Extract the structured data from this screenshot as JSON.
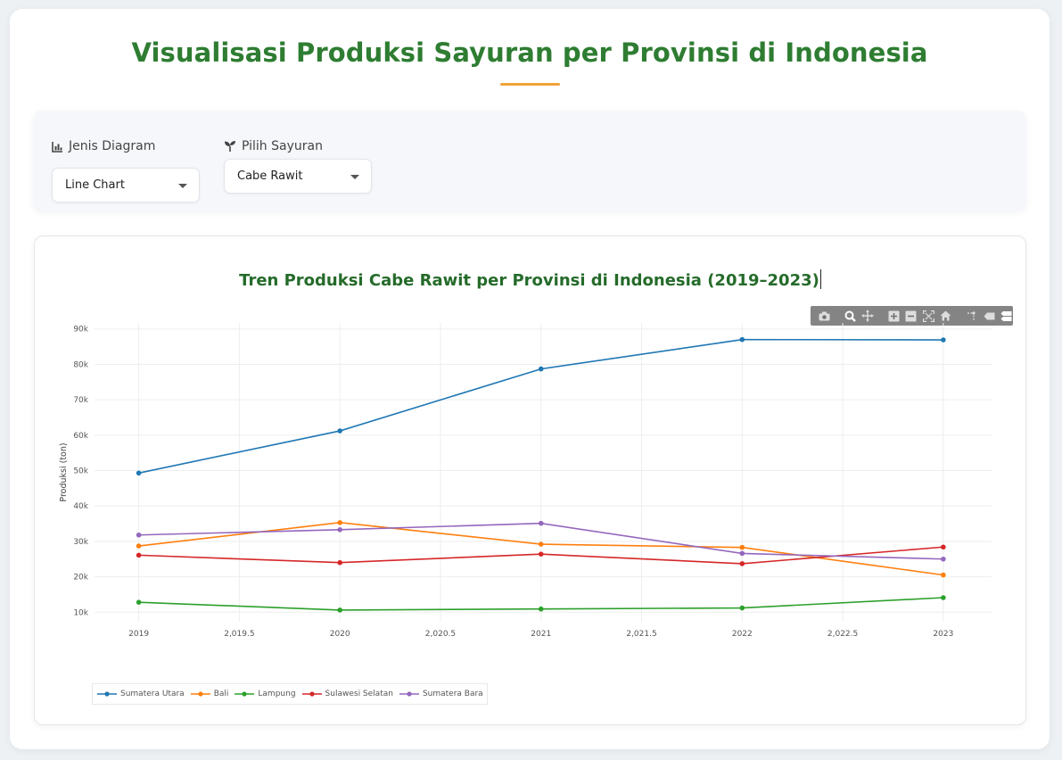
{
  "page": {
    "title": "Visualisasi Produksi Sayuran per Provinsi di Indonesia"
  },
  "controls": {
    "chart_type": {
      "label": "Jenis Diagram",
      "icon": "chart-bar-icon",
      "value": "Line Chart"
    },
    "vegetable": {
      "label": "Pilih Sayuran",
      "icon": "seedling-icon",
      "value": "Cabe Rawit"
    }
  },
  "colors": {
    "accent_green": "#2e7d32",
    "underline_orange": "#f2a33a"
  },
  "chart_data": {
    "type": "line",
    "title": "Tren Produksi Cabe Rawit per Provinsi di Indonesia (2019–2023)",
    "xlabel": "",
    "ylabel": "Produksi (ton)",
    "x": [
      2019,
      2020,
      2021,
      2022,
      2023
    ],
    "x_ticks": [
      "2019",
      "2,019.5",
      "2020",
      "2,020.5",
      "2021",
      "2,021.5",
      "2022",
      "2,022.5",
      "2023"
    ],
    "y_ticks": [
      "10k",
      "20k",
      "30k",
      "40k",
      "50k",
      "60k",
      "70k",
      "80k",
      "90k"
    ],
    "xlim": [
      2018.78,
      2023.24
    ],
    "ylim": [
      7300,
      91700
    ],
    "grid": true,
    "legend_position": "bottom-left",
    "series": [
      {
        "name": "Sumatera Utara",
        "color": "#1f77b4",
        "values": [
          49300,
          61200,
          78700,
          87000,
          86900
        ]
      },
      {
        "name": "Bali",
        "color": "#ff7f0e",
        "values": [
          28700,
          35300,
          29200,
          28300,
          20500
        ]
      },
      {
        "name": "Lampung",
        "color": "#2ca02c",
        "values": [
          12800,
          10600,
          10900,
          11200,
          14100
        ]
      },
      {
        "name": "Sulawesi Selatan",
        "color": "#d62728",
        "values": [
          26100,
          24000,
          26400,
          23700,
          28400
        ]
      },
      {
        "name": "Sumatera Bara",
        "color": "#9467bd",
        "values": [
          31800,
          33300,
          35100,
          26600,
          25000
        ]
      }
    ]
  },
  "modebar": {
    "buttons": [
      "camera-icon",
      "zoom-icon",
      "pan-icon",
      "zoom-in-icon",
      "zoom-out-icon",
      "autoscale-icon",
      "reset-axes-icon",
      "spike-lines-icon",
      "hover-closest-icon",
      "hover-compare-icon"
    ]
  }
}
